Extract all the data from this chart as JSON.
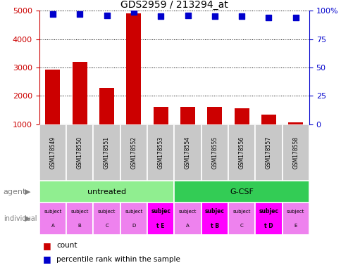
{
  "title": "GDS2959 / 213294_at",
  "samples": [
    "GSM178549",
    "GSM178550",
    "GSM178551",
    "GSM178552",
    "GSM178553",
    "GSM178554",
    "GSM178555",
    "GSM178556",
    "GSM178557",
    "GSM178558"
  ],
  "counts": [
    2920,
    3200,
    2280,
    4900,
    1620,
    1620,
    1600,
    1560,
    1350,
    1070
  ],
  "percentiles": [
    97,
    97,
    96,
    99,
    95,
    96,
    95,
    95,
    94,
    94
  ],
  "ylim_left": [
    1000,
    5000
  ],
  "ylim_right": [
    0,
    100
  ],
  "yticks_left": [
    1000,
    2000,
    3000,
    4000,
    5000
  ],
  "yticks_right": [
    0,
    25,
    50,
    75,
    100
  ],
  "ytick_labels_right": [
    "0",
    "25",
    "50",
    "75",
    "100%"
  ],
  "agent_groups": [
    {
      "label": "untreated",
      "start": 0,
      "end": 5,
      "color": "#90ee90"
    },
    {
      "label": "G-CSF",
      "start": 5,
      "end": 10,
      "color": "#33cc55"
    }
  ],
  "individual_labels": [
    [
      "subject",
      "A"
    ],
    [
      "subject",
      "B"
    ],
    [
      "subject",
      "C"
    ],
    [
      "subject",
      "D"
    ],
    [
      "subjec",
      "t E"
    ],
    [
      "subject",
      "A"
    ],
    [
      "subjec",
      "t B"
    ],
    [
      "subject",
      "C"
    ],
    [
      "subjec",
      "t D"
    ],
    [
      "subject",
      "E"
    ]
  ],
  "individual_colors": [
    "#ee82ee",
    "#ee82ee",
    "#ee82ee",
    "#ee82ee",
    "#ff00ff",
    "#ee82ee",
    "#ff00ff",
    "#ee82ee",
    "#ff00ff",
    "#ee82ee"
  ],
  "bar_color": "#cc0000",
  "dot_color": "#0000cc",
  "grid_color": "#000000",
  "sample_bg_color": "#c8c8c8",
  "left_label_color": "#cc0000",
  "right_label_color": "#0000cc",
  "label_text_color": "#808080"
}
